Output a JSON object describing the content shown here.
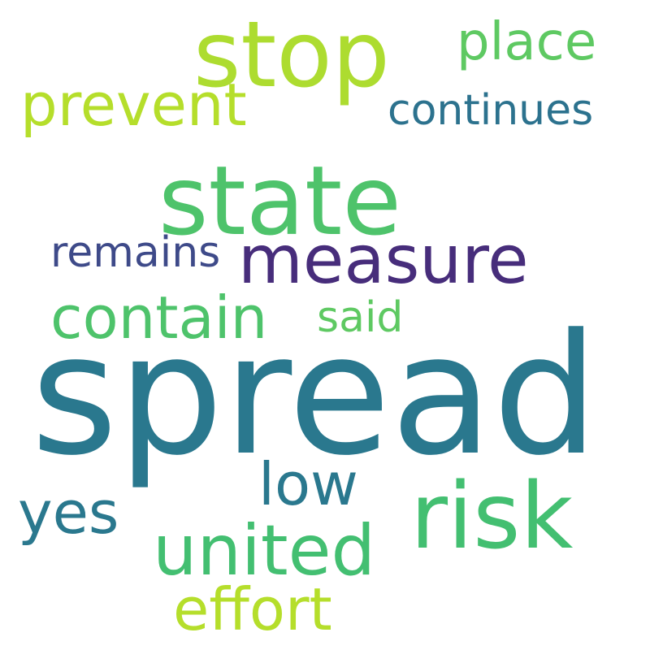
{
  "words": {
    "spread": {
      "text": "spread",
      "color": "#2a788e"
    },
    "state": {
      "text": "state",
      "color": "#4ec36b"
    },
    "stop": {
      "text": "stop",
      "color": "#addc30"
    },
    "risk": {
      "text": "risk",
      "color": "#43bf71"
    },
    "united": {
      "text": "united",
      "color": "#43bf71"
    },
    "measure": {
      "text": "measure",
      "color": "#472d7b"
    },
    "contain": {
      "text": "contain",
      "color": "#4ec36b"
    },
    "prevent": {
      "text": "prevent",
      "color": "#b5de2b"
    },
    "effort": {
      "text": "effort",
      "color": "#b5de2b"
    },
    "low": {
      "text": "low",
      "color": "#2a788e"
    },
    "yes": {
      "text": "yes",
      "color": "#2a788e"
    },
    "place": {
      "text": "place",
      "color": "#5ec962"
    },
    "continues": {
      "text": "continues",
      "color": "#2c728e"
    },
    "remains": {
      "text": "remains",
      "color": "#3e4a89"
    },
    "said": {
      "text": "said",
      "color": "#5ec962"
    }
  }
}
